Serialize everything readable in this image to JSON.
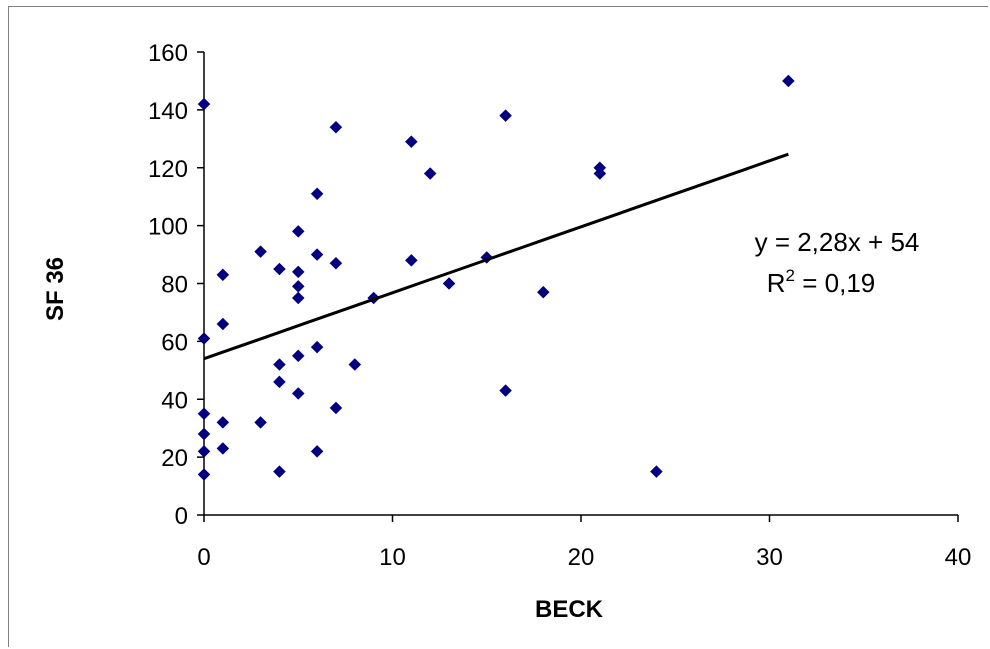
{
  "chart_data": {
    "type": "scatter",
    "title": "",
    "xlabel": "BECK",
    "ylabel": "SF 36",
    "xlim": [
      0,
      40
    ],
    "ylim": [
      0,
      160
    ],
    "x_ticks": [
      0,
      10,
      20,
      30,
      40
    ],
    "y_ticks": [
      0,
      20,
      40,
      60,
      80,
      100,
      120,
      140,
      160
    ],
    "grid": false,
    "legend": "none",
    "series": [
      {
        "marker": "diamond",
        "color": "#000080",
        "points": [
          [
            0,
            142
          ],
          [
            0,
            61
          ],
          [
            0,
            35
          ],
          [
            0,
            28
          ],
          [
            0,
            22
          ],
          [
            0,
            14
          ],
          [
            1,
            83
          ],
          [
            1,
            66
          ],
          [
            1,
            32
          ],
          [
            1,
            23
          ],
          [
            3,
            91
          ],
          [
            3,
            32
          ],
          [
            4,
            85
          ],
          [
            4,
            52
          ],
          [
            4,
            46
          ],
          [
            4,
            15
          ],
          [
            5,
            98
          ],
          [
            5,
            84
          ],
          [
            5,
            79
          ],
          [
            5,
            75
          ],
          [
            5,
            55
          ],
          [
            5,
            42
          ],
          [
            6,
            111
          ],
          [
            6,
            90
          ],
          [
            6,
            58
          ],
          [
            6,
            22
          ],
          [
            7,
            134
          ],
          [
            7,
            87
          ],
          [
            7,
            37
          ],
          [
            8,
            52
          ],
          [
            9,
            75
          ],
          [
            11,
            129
          ],
          [
            11,
            88
          ],
          [
            12,
            118
          ],
          [
            13,
            80
          ],
          [
            15,
            89
          ],
          [
            16,
            138
          ],
          [
            16,
            43
          ],
          [
            18,
            77
          ],
          [
            21,
            120
          ],
          [
            21,
            118
          ],
          [
            24,
            15
          ],
          [
            31,
            150
          ]
        ]
      }
    ],
    "trendline": {
      "type": "linear",
      "slope": 2.28,
      "intercept": 54,
      "x_range": [
        0,
        31
      ],
      "color": "#000000"
    },
    "annotations": {
      "equation": "y = 2,28x + 54",
      "r2_prefix": "R",
      "r2_exp": "2",
      "r2_value": " = 0,19"
    }
  }
}
